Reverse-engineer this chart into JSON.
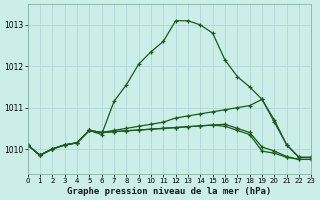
{
  "title": "Graphe pression niveau de la mer (hPa)",
  "bg_color": "#cceee8",
  "grid_color": "#b0d8d8",
  "line_color": "#1a5c1a",
  "xlim": [
    0,
    23
  ],
  "ylim": [
    1009.4,
    1013.5
  ],
  "yticks": [
    1010,
    1011,
    1012,
    1013
  ],
  "xticks": [
    0,
    1,
    2,
    3,
    4,
    5,
    6,
    7,
    8,
    9,
    10,
    11,
    12,
    13,
    14,
    15,
    16,
    17,
    18,
    19,
    20,
    21,
    22,
    23
  ],
  "series": [
    [
      1010.1,
      1009.85,
      1010.0,
      1010.1,
      1010.15,
      1010.45,
      1010.35,
      1011.15,
      1011.55,
      1012.05,
      1012.35,
      1012.6,
      1013.1,
      1013.1,
      1013.0,
      1012.8,
      1012.15,
      1011.75,
      1011.5,
      1011.2,
      1010.65,
      1010.1,
      1009.8,
      1009.8
    ],
    [
      1010.1,
      1009.85,
      1010.0,
      1010.1,
      1010.15,
      1010.45,
      1010.4,
      1010.45,
      1010.5,
      1010.55,
      1010.6,
      1010.65,
      1010.75,
      1010.8,
      1010.85,
      1010.9,
      1010.95,
      1011.0,
      1011.05,
      1011.2,
      1010.7,
      1010.1,
      1009.8,
      1009.8
    ],
    [
      1010.1,
      1009.85,
      1010.0,
      1010.1,
      1010.15,
      1010.45,
      1010.4,
      1010.42,
      1010.44,
      1010.46,
      1010.48,
      1010.5,
      1010.52,
      1010.54,
      1010.56,
      1010.58,
      1010.6,
      1010.5,
      1010.4,
      1010.05,
      1009.95,
      1009.82,
      1009.75,
      1009.75
    ],
    [
      1010.1,
      1009.85,
      1010.0,
      1010.1,
      1010.15,
      1010.45,
      1010.4,
      1010.42,
      1010.44,
      1010.46,
      1010.48,
      1010.5,
      1010.52,
      1010.54,
      1010.56,
      1010.58,
      1010.55,
      1010.45,
      1010.35,
      1009.95,
      1009.9,
      1009.8,
      1009.75,
      1009.75
    ]
  ]
}
